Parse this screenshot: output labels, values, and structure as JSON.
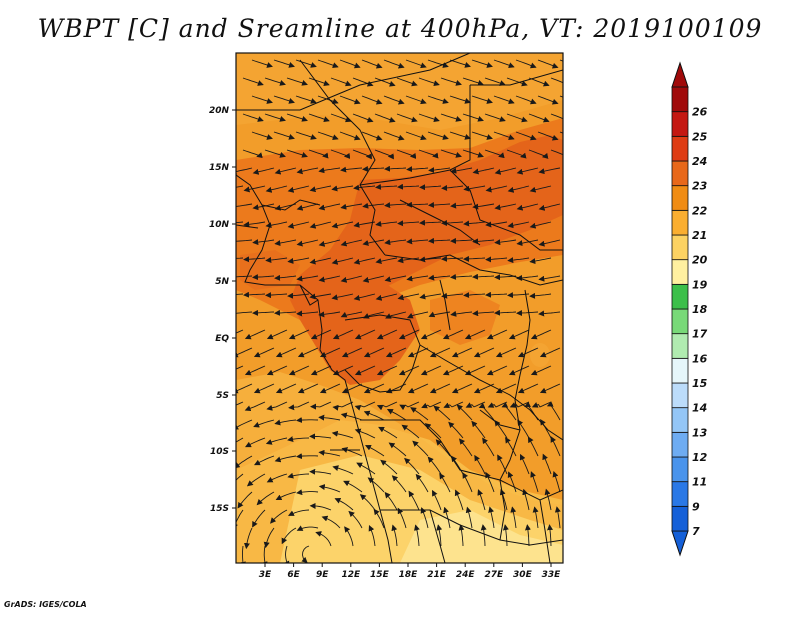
{
  "title": "WBPT [C] and Sreamline at 400hPa, VT: 2019100109",
  "credit": "GrADS: IGES/COLA",
  "map": {
    "lon_labels": [
      "3E",
      "6E",
      "9E",
      "12E",
      "15E",
      "18E",
      "21E",
      "24E",
      "27E",
      "30E",
      "33E"
    ],
    "lat_labels": [
      "20N",
      "15N",
      "10N",
      "5N",
      "EQ",
      "5S",
      "10S",
      "15S"
    ]
  },
  "colorbar": {
    "labels": [
      "7",
      "9",
      "11",
      "12",
      "13",
      "14",
      "15",
      "16",
      "17",
      "18",
      "19",
      "20",
      "21",
      "22",
      "23",
      "24",
      "25",
      "26"
    ],
    "colors": [
      "#1560d8",
      "#2a78e6",
      "#4a94ec",
      "#6eacf2",
      "#94c6f6",
      "#bcdcfa",
      "#e6f6fa",
      "#b0ebb0",
      "#78d978",
      "#3cbf4a",
      "#fff0a0",
      "#fcd262",
      "#faae30",
      "#f08c14",
      "#e8681a",
      "#de3c14",
      "#c41812",
      "#a00a0a"
    ]
  },
  "field_colors": {
    "yellow_light": "#fcde82",
    "orange_light": "#f8bc48",
    "orange": "#f29d2a",
    "orange_dark": "#ec7a1c",
    "red_orange": "#e06018"
  }
}
